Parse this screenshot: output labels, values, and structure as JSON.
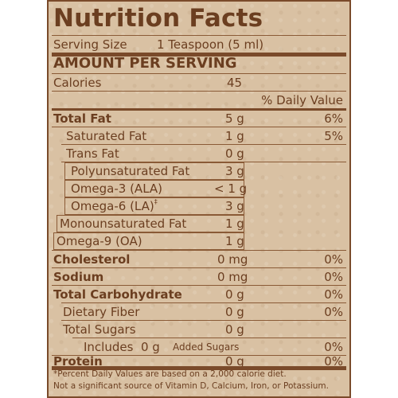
{
  "label": {
    "title": "Nutrition Facts",
    "serving_size_label": "Serving Size",
    "serving_size_value": "1 Teaspoon (5 ml)",
    "amount_per_serving": "AMOUNT PER SERVING",
    "calories_label": "Calories",
    "calories_value": "45",
    "dv_header": "% Daily Value",
    "rows": [
      {
        "name": "Total Fat",
        "amount": "5 g",
        "dv": "6%"
      },
      {
        "name": "Saturated Fat",
        "amount": "1 g",
        "dv": "5%"
      },
      {
        "name": "Trans Fat",
        "amount": "0 g",
        "dv": ""
      },
      {
        "name": "Polyunsaturated Fat",
        "amount": "3 g",
        "dv": ""
      },
      {
        "name": "Omega-3 (ALA)",
        "amount": "< 1 g",
        "dv": ""
      },
      {
        "name": "Omega-6 (LA)",
        "amount": "3 g",
        "dv": "",
        "marker": "‡"
      },
      {
        "name": "Monounsaturated Fat",
        "amount": "1 g",
        "dv": ""
      },
      {
        "name": "Omega-9 (OA)",
        "amount": "1 g",
        "dv": ""
      },
      {
        "name": "Cholesterol",
        "amount": "0 mg",
        "dv": "0%"
      },
      {
        "name": "Sodium",
        "amount": "0 mg",
        "dv": "0%"
      },
      {
        "name": "Total Carbohydrate",
        "amount": "0 g",
        "dv": "0%"
      },
      {
        "name": "Dietary Fiber",
        "amount": "0 g",
        "dv": "0%"
      },
      {
        "name": "Total Sugars",
        "amount": "0 g",
        "dv": ""
      },
      {
        "name": "Includes",
        "amount": "0 g",
        "added": "Added Sugars",
        "dv": "0%"
      },
      {
        "name": "Protein",
        "amount": "0 g",
        "dv": "0%"
      }
    ],
    "footnote_line1": "*Percent Daily Values are based on a 2,000 calorie diet.",
    "footnote_line2": "Not a significant source of Vitamin D, Calcium, Iron, or Potassium.",
    "text_color": "#6b3e20",
    "background_color": "#d9c1a3"
  }
}
